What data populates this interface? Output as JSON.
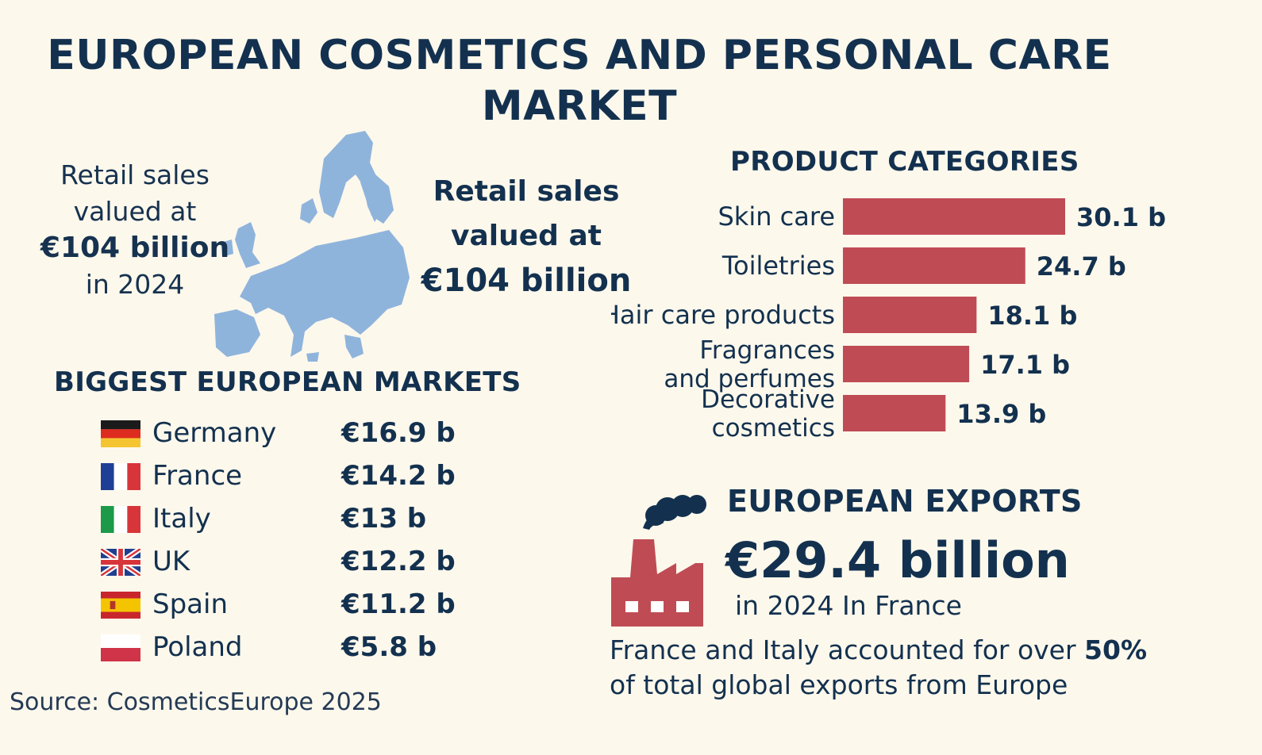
{
  "title": "EUROPEAN COSMETICS AND PERSONAL CARE MARKET",
  "retail_left": {
    "line1": "Retail sales",
    "line2": "valued at",
    "amount": "€104 billion",
    "year": "in 2024"
  },
  "retail_mid": {
    "line1": "Retail sales",
    "line2": "valued at",
    "amount": "€104 billion"
  },
  "markets": {
    "heading": "BIGGEST EUROPEAN MARKETS",
    "rows": [
      {
        "country": "Germany",
        "value": "€16.9 b",
        "flag": "germany-flag-icon"
      },
      {
        "country": "France",
        "value": "€14.2 b",
        "flag": "france-flag-icon"
      },
      {
        "country": "Italy",
        "value": "€13 b",
        "flag": "italy-flag-icon"
      },
      {
        "country": "UK",
        "value": "€12.2 b",
        "flag": "uk-flag-icon"
      },
      {
        "country": "Spain",
        "value": "€11.2 b",
        "flag": "spain-flag-icon"
      },
      {
        "country": "Poland",
        "value": "€5.8 b",
        "flag": "poland-flag-icon"
      }
    ]
  },
  "source": "Source: CosmeticsEurope 2025",
  "chart_data": {
    "type": "bar",
    "orientation": "horizontal",
    "title": "PRODUCT CATEGORIES",
    "categories": [
      "Skin care",
      "Toiletries",
      "Hair care products",
      "Fragrances and perfumes",
      "Decorative cosmetics"
    ],
    "category_lines": [
      [
        "Skin care"
      ],
      [
        "Toiletries"
      ],
      [
        "Hair care products"
      ],
      [
        "Fragrances",
        "and perfumes"
      ],
      [
        "Decorative",
        "cosmetics"
      ]
    ],
    "values": [
      30.1,
      24.7,
      18.1,
      17.1,
      13.9
    ],
    "data_labels": [
      "30.1 b",
      "24.7 b",
      "18.1 b",
      "17.1 b",
      "13.9 b"
    ],
    "xlim": [
      0,
      30.1
    ],
    "grid": false,
    "bar_color": "#bf4c55"
  },
  "exports": {
    "heading": "EUROPEAN EXPORTS",
    "value": "€29.4 billion",
    "sub": "in 2024 In France",
    "note_pre": "France and Italy accounted for over ",
    "note_pct": "50%",
    "note_post": "of total global exports from Europe",
    "icon": "factory-icon"
  },
  "colors": {
    "text": "#13314f",
    "bar": "#bf4c55",
    "map": "#8fb4dc",
    "background": "#fdf8ec"
  }
}
